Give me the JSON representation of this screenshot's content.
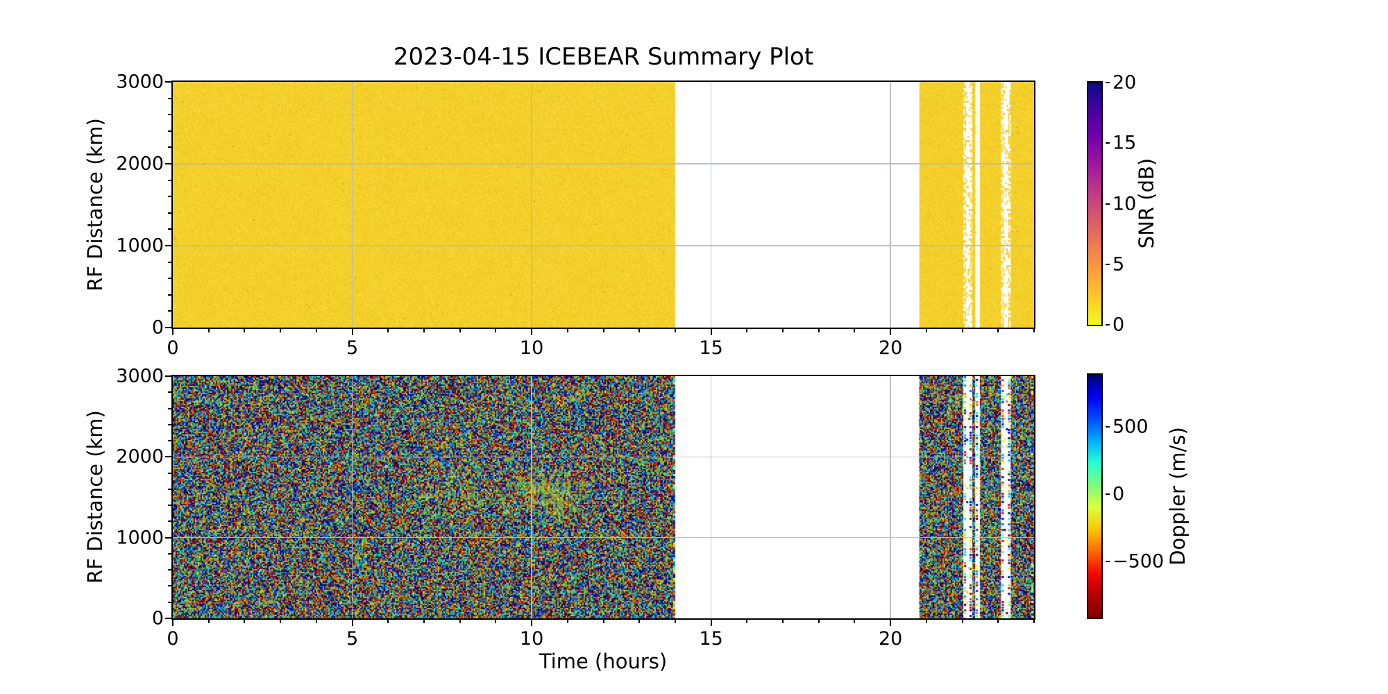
{
  "title": "2023-04-15 ICEBEAR Summary Plot",
  "axes": {
    "x_label": "Time (hours)",
    "y_label": "RF Distance (km)",
    "x_range": [
      0,
      24
    ],
    "y_range": [
      0,
      3000
    ],
    "x_major_ticks": [
      0,
      5,
      10,
      15,
      20
    ],
    "x_minor_step_hours": 1,
    "y_major_ticks": [
      0,
      1000,
      2000,
      3000
    ],
    "y_minor_step_km": 200,
    "grid": "on"
  },
  "colors": {
    "snr_base_yellow": "#f4d02b",
    "gridline": "#b2b9c9",
    "spine": "#000000",
    "background": "#ffffff",
    "plasma_r_stops_top_to_bottom": [
      "#0d0887",
      "#46039f",
      "#7201a8",
      "#9c179e",
      "#bd3786",
      "#d8576b",
      "#ed7953",
      "#fb9f3a",
      "#fdca26",
      "#f0f921"
    ],
    "jet_stops_top_to_bottom": [
      "#000080",
      "#0000f1",
      "#004cff",
      "#00b0ff",
      "#29ffce",
      "#7dff7a",
      "#dcff3c",
      "#ffc400",
      "#ff6800",
      "#f10800",
      "#b20000",
      "#800000"
    ]
  },
  "chart_data": [
    {
      "type": "heatmap",
      "name": "snr-panel",
      "title": "2023-04-15 ICEBEAR Summary Plot",
      "xlabel": "Time (hours)",
      "ylabel": "RF Distance (km)",
      "xlim": [
        0,
        24
      ],
      "ylim": [
        0,
        3000
      ],
      "x_ticks": [
        0,
        5,
        10,
        15,
        20
      ],
      "y_ticks": [
        0,
        1000,
        2000,
        3000
      ],
      "colorbar": {
        "label": "SNR (dB)",
        "ticks": [
          0,
          5,
          10,
          15,
          20
        ],
        "vmin": 0,
        "vmax": 20,
        "colormap": "plasma_r"
      },
      "coverage_hours": [
        [
          0.0,
          14.0
        ],
        [
          20.8,
          24.0
        ]
      ],
      "gaps_hours": [
        {
          "from": 14.0,
          "to": 20.8,
          "style": "blank"
        },
        {
          "from": 22.03,
          "to": 22.28,
          "style": "ragged"
        },
        {
          "from": 22.36,
          "to": 22.49,
          "style": "solid"
        },
        {
          "from": 23.08,
          "to": 23.35,
          "style": "ragged"
        }
      ],
      "dominant_value_db": 0,
      "description": "SNR at noise floor (~0 dB, uniform yellow) over all ranges 0-3000 km wherever data exists; rare faint orange specks."
    },
    {
      "type": "heatmap",
      "name": "doppler-panel",
      "xlabel": "Time (hours)",
      "ylabel": "RF Distance (km)",
      "xlim": [
        0,
        24
      ],
      "ylim": [
        0,
        3000
      ],
      "x_ticks": [
        0,
        5,
        10,
        15,
        20
      ],
      "y_ticks": [
        0,
        1000,
        2000,
        3000
      ],
      "colorbar": {
        "label": "Doppler (m/s)",
        "ticks": [
          -500,
          0,
          500
        ],
        "vmin": -915,
        "vmax": 885,
        "colormap": "jet"
      },
      "coverage_hours": [
        [
          0.0,
          14.0
        ],
        [
          20.8,
          24.0
        ]
      ],
      "gaps_hours": [
        {
          "from": 14.0,
          "to": 20.8,
          "style": "blank"
        },
        {
          "from": 22.03,
          "to": 22.28,
          "style": "ragged"
        },
        {
          "from": 22.36,
          "to": 22.49,
          "style": "solid"
        },
        {
          "from": 23.08,
          "to": 23.35,
          "style": "ragged"
        }
      ],
      "noise": "random speckle spanning the full Doppler color range (muted jet tones)",
      "enhancement": {
        "time_hours": [
          7.0,
          11.6
        ],
        "strongest_hours": [
          9.6,
          11.1
        ],
        "range_km": [
          1300,
          1950
        ],
        "doppler_ms": [
          -100,
          100
        ],
        "description": "Faint green-yellow near-zero-Doppler echo streaks"
      },
      "edge_artifacts": "Bright saturated speckle columns at data-block boundaries (14 h edge, stripe edges, right edge)"
    }
  ]
}
